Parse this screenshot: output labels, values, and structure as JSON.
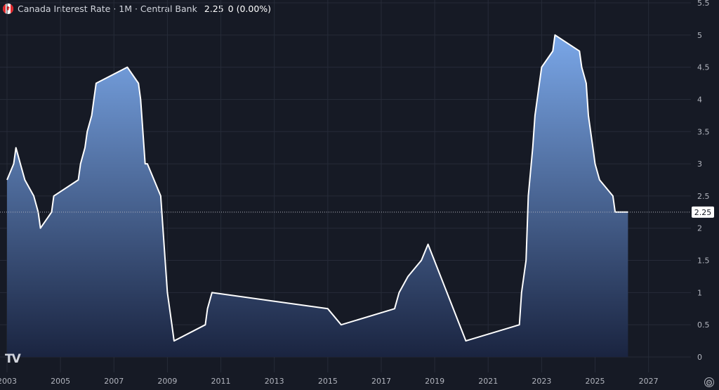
{
  "header": {
    "title": "Canada Interest Rate · 1M · Central Bank",
    "value": "2.25",
    "change": "0 (0.00%)"
  },
  "colors": {
    "background": "#161a25",
    "grid": "#262b38",
    "line": "#ffffff",
    "area_top": "#7aa7e8",
    "area_bottom": "#1a2440",
    "axis_text": "#b2b5be",
    "last_value_label_bg": "#ffffff",
    "last_value_label_text": "#131722"
  },
  "icons": {
    "logo": "tradingview-logo",
    "settings": "settings-gear-icon",
    "flag": "canada-flag-icon"
  },
  "chart_data": {
    "type": "area",
    "title": "Canada Interest Rate · 1M · Central Bank",
    "xlabel": "",
    "ylabel": "",
    "x_ticks": [
      "2003",
      "2005",
      "2007",
      "2009",
      "2011",
      "2013",
      "2015",
      "2017",
      "2019",
      "2021",
      "2023",
      "2025",
      "2027"
    ],
    "y_ticks": [
      "0",
      "0.5",
      "1",
      "1.5",
      "2",
      "2.5",
      "3",
      "3.5",
      "4",
      "4.5",
      "5",
      "5.5"
    ],
    "ylim": [
      0,
      5.5
    ],
    "xlim": [
      "2003-01",
      "2027-12"
    ],
    "grid": true,
    "last_value": 2.25,
    "last_value_label": "2.25",
    "series": [
      {
        "points": [
          [
            "2003-01",
            2.75
          ],
          [
            "2003-04",
            3.0
          ],
          [
            "2003-05",
            3.25
          ],
          [
            "2003-07",
            3.0
          ],
          [
            "2003-09",
            2.75
          ],
          [
            "2004-01",
            2.5
          ],
          [
            "2004-03",
            2.25
          ],
          [
            "2004-04",
            2.0
          ],
          [
            "2004-09",
            2.25
          ],
          [
            "2004-10",
            2.5
          ],
          [
            "2005-09",
            2.75
          ],
          [
            "2005-10",
            3.0
          ],
          [
            "2005-12",
            3.25
          ],
          [
            "2006-01",
            3.5
          ],
          [
            "2006-03",
            3.75
          ],
          [
            "2006-04",
            4.0
          ],
          [
            "2006-05",
            4.25
          ],
          [
            "2007-07",
            4.5
          ],
          [
            "2007-12",
            4.25
          ],
          [
            "2008-01",
            4.0
          ],
          [
            "2008-03",
            3.0
          ],
          [
            "2008-04",
            3.0
          ],
          [
            "2008-10",
            2.5
          ],
          [
            "2008-12",
            1.5
          ],
          [
            "2009-01",
            1.0
          ],
          [
            "2009-03",
            0.5
          ],
          [
            "2009-04",
            0.25
          ],
          [
            "2010-06",
            0.5
          ],
          [
            "2010-07",
            0.75
          ],
          [
            "2010-09",
            1.0
          ],
          [
            "2015-01",
            0.75
          ],
          [
            "2015-07",
            0.5
          ],
          [
            "2017-07",
            0.75
          ],
          [
            "2017-09",
            1.0
          ],
          [
            "2018-01",
            1.25
          ],
          [
            "2018-07",
            1.5
          ],
          [
            "2018-10",
            1.75
          ],
          [
            "2020-03",
            0.25
          ],
          [
            "2022-03",
            0.5
          ],
          [
            "2022-04",
            1.0
          ],
          [
            "2022-06",
            1.5
          ],
          [
            "2022-07",
            2.5
          ],
          [
            "2022-09",
            3.25
          ],
          [
            "2022-10",
            3.75
          ],
          [
            "2022-12",
            4.25
          ],
          [
            "2023-01",
            4.5
          ],
          [
            "2023-06",
            4.75
          ],
          [
            "2023-07",
            5.0
          ],
          [
            "2024-06",
            4.75
          ],
          [
            "2024-07",
            4.5
          ],
          [
            "2024-09",
            4.25
          ],
          [
            "2024-10",
            3.75
          ],
          [
            "2024-12",
            3.25
          ],
          [
            "2025-01",
            3.0
          ],
          [
            "2025-03",
            2.75
          ],
          [
            "2025-09",
            2.5
          ],
          [
            "2025-10",
            2.25
          ],
          [
            "2025-12",
            2.25
          ]
        ]
      }
    ]
  }
}
